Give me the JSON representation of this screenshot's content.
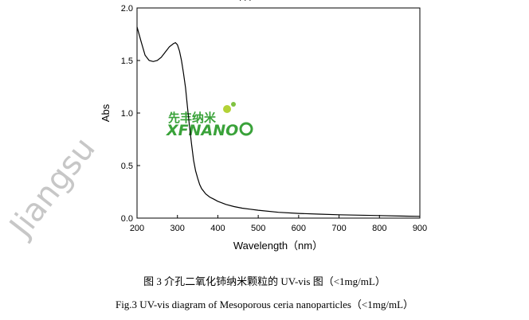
{
  "chart_data": {
    "type": "line",
    "title": "",
    "xlabel": "Wavelength（nm）",
    "ylabel": "Abs",
    "xlim": [
      200,
      900
    ],
    "ylim": [
      0,
      2.0
    ],
    "x_ticks": [
      "200",
      "300",
      "400",
      "500",
      "600",
      "700",
      "800",
      "900"
    ],
    "y_ticks": [
      "0.0",
      "0.5",
      "1.0",
      "1.5",
      "2.0"
    ],
    "grid": false,
    "legend": "none",
    "series": [
      {
        "color": "#000000",
        "x": [
          200,
          210,
          220,
          230,
          240,
          250,
          260,
          270,
          280,
          290,
          295,
          300,
          305,
          310,
          315,
          320,
          325,
          330,
          335,
          340,
          345,
          350,
          355,
          360,
          370,
          380,
          390,
          400,
          420,
          440,
          460,
          480,
          500,
          550,
          600,
          650,
          700,
          750,
          800,
          850,
          900
        ],
        "y": [
          1.82,
          1.68,
          1.55,
          1.5,
          1.49,
          1.5,
          1.53,
          1.58,
          1.63,
          1.66,
          1.67,
          1.65,
          1.59,
          1.5,
          1.38,
          1.24,
          1.05,
          0.87,
          0.7,
          0.55,
          0.45,
          0.38,
          0.32,
          0.28,
          0.23,
          0.2,
          0.18,
          0.16,
          0.13,
          0.11,
          0.095,
          0.085,
          0.075,
          0.055,
          0.045,
          0.038,
          0.032,
          0.028,
          0.024,
          0.02,
          0.017
        ]
      }
    ]
  },
  "captions": {
    "cn": "图 3 介孔二氧化铈纳米颗粒的 UV-vis 图（<1mg/mL）",
    "en": "Fig.3    UV-vis diagram of Mesoporous ceria nanoparticles（<1mg/mL）"
  },
  "watermark": {
    "logo_cn": "先丰纳米",
    "logo_en": "XFNANO",
    "logo_color": "#3aa23a",
    "side_text": "Jiangsu"
  }
}
